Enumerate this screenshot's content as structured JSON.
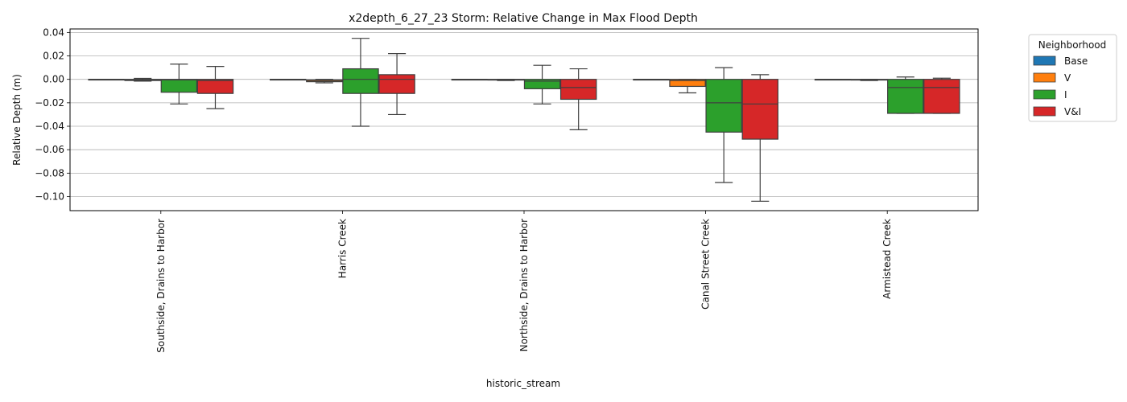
{
  "chart_data": {
    "type": "box",
    "title": "x2depth_6_27_23 Storm: Relative Change in Max Flood Depth",
    "xlabel": "historic_stream",
    "ylabel": "Relative Depth (m)",
    "ylim": [
      -0.112,
      0.043
    ],
    "yticks": [
      0.04,
      0.02,
      0.0,
      -0.02,
      -0.04,
      -0.06,
      -0.08,
      -0.1
    ],
    "ytick_labels": [
      "0.04",
      "0.02",
      "0.00",
      "−0.02",
      "−0.04",
      "−0.06",
      "−0.08",
      "−0.10"
    ],
    "grid": "horizontal",
    "categories": [
      "Southside, Drains to Harbor",
      "Harris Creek",
      "Northside, Drains to Harbor",
      "Canal Street Creek",
      "Armistead Creek"
    ],
    "legend": {
      "title": "Neighborhood",
      "placement": "outside-right"
    },
    "series": [
      {
        "name": "Base",
        "color": "#1f77b4",
        "boxes": [
          {
            "whislo": 0.0,
            "q1": 0.0,
            "med": 0.0,
            "q3": 0.0,
            "whishi": 0.0
          },
          {
            "whislo": 0.0,
            "q1": 0.0,
            "med": 0.0,
            "q3": 0.0,
            "whishi": 0.0
          },
          {
            "whislo": 0.0,
            "q1": 0.0,
            "med": 0.0,
            "q3": 0.0,
            "whishi": 0.0
          },
          {
            "whislo": 0.0,
            "q1": 0.0,
            "med": 0.0,
            "q3": 0.0,
            "whishi": 0.0
          },
          {
            "whislo": 0.0,
            "q1": 0.0,
            "med": 0.0,
            "q3": 0.0,
            "whishi": 0.0
          }
        ]
      },
      {
        "name": "V",
        "color": "#ff7f0e",
        "boxes": [
          {
            "whislo": -0.0015,
            "q1": -0.001,
            "med": -0.0005,
            "q3": 0.0,
            "whishi": 0.0008
          },
          {
            "whislo": -0.003,
            "q1": -0.002,
            "med": -0.001,
            "q3": -0.0005,
            "whishi": 0.0
          },
          {
            "whislo": -0.001,
            "q1": -0.0006,
            "med": -0.0003,
            "q3": 0.0,
            "whishi": 0.0
          },
          {
            "whislo": -0.0115,
            "q1": -0.006,
            "med": -0.001,
            "q3": 0.0,
            "whishi": 0.0
          },
          {
            "whislo": -0.001,
            "q1": -0.0006,
            "med": -0.0003,
            "q3": 0.0,
            "whishi": 0.0
          }
        ]
      },
      {
        "name": "I",
        "color": "#2ca02c",
        "boxes": [
          {
            "whislo": -0.021,
            "q1": -0.011,
            "med": -0.0005,
            "q3": 0.0,
            "whishi": 0.013
          },
          {
            "whislo": -0.04,
            "q1": -0.012,
            "med": 0.0,
            "q3": 0.009,
            "whishi": 0.035
          },
          {
            "whislo": -0.021,
            "q1": -0.008,
            "med": -0.0015,
            "q3": 0.0,
            "whishi": 0.012
          },
          {
            "whislo": -0.088,
            "q1": -0.045,
            "med": -0.02,
            "q3": 0.0,
            "whishi": 0.01
          },
          {
            "whislo": -0.029,
            "q1": -0.029,
            "med": -0.007,
            "q3": 0.0,
            "whishi": 0.002
          }
        ]
      },
      {
        "name": "V&I",
        "color": "#d62728",
        "boxes": [
          {
            "whislo": -0.025,
            "q1": -0.012,
            "med": -0.001,
            "q3": 0.0,
            "whishi": 0.011
          },
          {
            "whislo": -0.03,
            "q1": -0.012,
            "med": 0.0,
            "q3": 0.004,
            "whishi": 0.022
          },
          {
            "whislo": -0.043,
            "q1": -0.017,
            "med": -0.007,
            "q3": 0.0,
            "whishi": 0.009
          },
          {
            "whislo": -0.104,
            "q1": -0.051,
            "med": -0.021,
            "q3": 0.0,
            "whishi": 0.004
          },
          {
            "whislo": -0.029,
            "q1": -0.029,
            "med": -0.007,
            "q3": 0.0,
            "whishi": 0.001
          }
        ]
      }
    ]
  }
}
